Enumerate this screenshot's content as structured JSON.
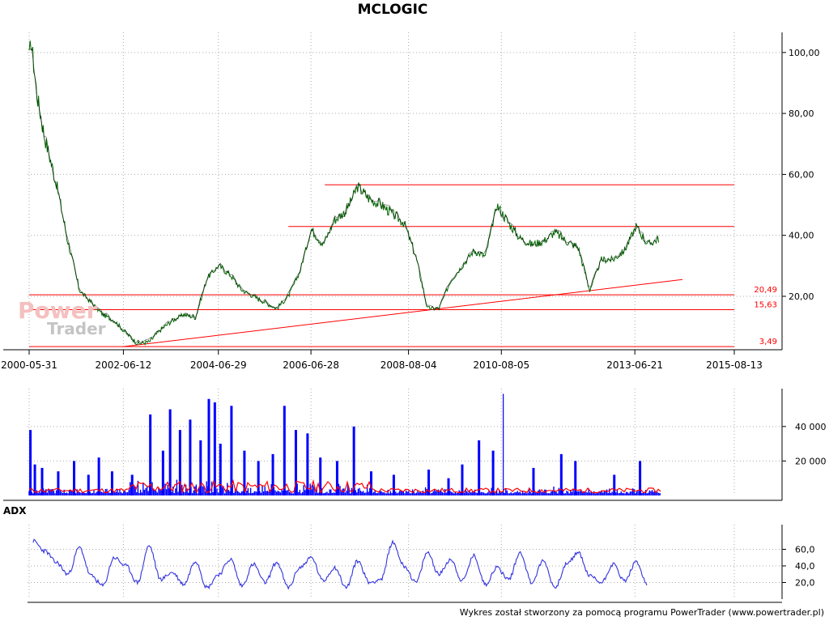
{
  "title": "MCLOGIC",
  "footer": "Wykres został stworzony za pomocą programu PowerTrader (www.powertrader.pl)",
  "watermark": {
    "line1": "Power",
    "line2": "Trader"
  },
  "colors": {
    "price": "#006400",
    "level": "#ff0000",
    "volume": "#0000ff",
    "volume_avg": "#ff0000",
    "adx": "#3333dd",
    "grid": "#aaaaaa"
  },
  "chart_data": [
    {
      "type": "line",
      "name": "price",
      "title": "MCLOGIC",
      "x_tick_labels": [
        "2000-05-31",
        "2002-06-12",
        "2004-06-29",
        "2006-06-28",
        "2008-08-04",
        "2010-08-05",
        "2013-06-21",
        "2015-08-13"
      ],
      "y_tick_labels": [
        "20,00",
        "40,00",
        "60,00",
        "80,00",
        "100,00"
      ],
      "ylim": [
        3,
        105
      ],
      "x_range": [
        "2000-05-31",
        "2015-08-13"
      ],
      "grid": true,
      "series": [
        {
          "x": [
            "2000-05-31",
            "2000-06-15",
            "2000-08-01",
            "2000-10-01",
            "2001-01-01",
            "2001-04-01",
            "2001-07-01",
            "2001-10-01",
            "2002-01-01",
            "2002-04-01",
            "2002-07-01",
            "2002-10-01",
            "2003-01-01",
            "2003-04-01",
            "2003-07-01",
            "2003-10-01",
            "2004-01-01",
            "2004-04-01",
            "2004-07-01",
            "2004-10-01",
            "2005-01-01",
            "2005-04-01",
            "2005-07-01",
            "2005-10-01",
            "2006-01-01",
            "2006-04-01",
            "2006-07-01",
            "2006-10-01",
            "2007-01-01",
            "2007-04-01",
            "2007-07-01",
            "2007-10-01",
            "2008-01-01",
            "2008-04-01",
            "2008-07-01",
            "2008-10-01",
            "2009-01-01",
            "2009-04-01",
            "2009-07-01",
            "2009-10-01",
            "2010-01-01",
            "2010-04-01",
            "2010-07-01",
            "2010-10-01",
            "2011-01-01",
            "2011-04-01",
            "2011-07-01",
            "2011-10-01",
            "2012-01-01",
            "2012-04-01",
            "2012-07-01",
            "2012-10-01",
            "2013-01-01",
            "2013-04-01",
            "2013-07-01",
            "2013-10-01",
            "2014-01-01"
          ],
          "values": [
            98,
            104,
            86,
            72,
            57,
            38,
            22,
            18,
            14,
            12,
            8,
            4.5,
            5,
            9,
            12,
            14,
            13,
            26,
            30,
            27,
            22,
            20,
            18,
            16,
            20,
            28,
            42,
            37,
            45,
            48,
            56,
            52,
            50,
            47,
            44,
            33,
            16,
            16,
            25,
            30,
            35,
            33,
            50,
            44,
            39,
            37,
            38,
            41,
            38,
            36,
            22,
            32,
            32,
            35,
            43,
            37,
            39
          ]
        }
      ],
      "levels": [
        {
          "value": 56.6,
          "label": "",
          "from": "2006-10-15",
          "to": "2015-08-13"
        },
        {
          "value": 42.9,
          "label": "",
          "from": "2006-01-01",
          "to": "2015-08-13"
        },
        {
          "value": 20.49,
          "label": "20,49",
          "from": "2000-05-31",
          "to": "2015-08-13"
        },
        {
          "value": 15.63,
          "label": "15,63",
          "from": "2000-05-31",
          "to": "2015-08-13"
        },
        {
          "value": 3.49,
          "label": "3,49",
          "from": "2000-05-31",
          "to": "2015-08-13"
        }
      ],
      "trendline": {
        "from": [
          "2002-06-12",
          3.49
        ],
        "to": [
          "2014-07-01",
          25.5
        ]
      }
    },
    {
      "type": "bar",
      "name": "volume",
      "y_tick_labels": [
        "20 000",
        "40 000"
      ],
      "ylim": [
        0,
        62000
      ],
      "grid": true,
      "x_range": [
        "2000-05-31",
        "2015-08-13"
      ],
      "spikes": [
        {
          "x": "2000-06-10",
          "value": 38000
        },
        {
          "x": "2000-07-15",
          "value": 18000
        },
        {
          "x": "2000-09-10",
          "value": 16000
        },
        {
          "x": "2001-01-15",
          "value": 14000
        },
        {
          "x": "2001-05-20",
          "value": 20000
        },
        {
          "x": "2001-09-10",
          "value": 12000
        },
        {
          "x": "2001-12-01",
          "value": 22000
        },
        {
          "x": "2002-03-15",
          "value": 14000
        },
        {
          "x": "2002-08-20",
          "value": 12000
        },
        {
          "x": "2003-01-10",
          "value": 47000
        },
        {
          "x": "2003-04-20",
          "value": 26000
        },
        {
          "x": "2003-06-15",
          "value": 50000
        },
        {
          "x": "2003-09-01",
          "value": 38000
        },
        {
          "x": "2003-11-20",
          "value": 44000
        },
        {
          "x": "2004-02-10",
          "value": 32000
        },
        {
          "x": "2004-04-15",
          "value": 56000
        },
        {
          "x": "2004-06-01",
          "value": 54000
        },
        {
          "x": "2004-07-15",
          "value": 30000
        },
        {
          "x": "2004-10-10",
          "value": 52000
        },
        {
          "x": "2005-01-20",
          "value": 26000
        },
        {
          "x": "2005-05-10",
          "value": 20000
        },
        {
          "x": "2005-09-01",
          "value": 24000
        },
        {
          "x": "2005-12-01",
          "value": 52000
        },
        {
          "x": "2006-03-01",
          "value": 38000
        },
        {
          "x": "2006-06-01",
          "value": 36000
        },
        {
          "x": "2006-09-10",
          "value": 22000
        },
        {
          "x": "2007-01-20",
          "value": 20000
        },
        {
          "x": "2007-06-01",
          "value": 40000
        },
        {
          "x": "2007-10-15",
          "value": 14000
        },
        {
          "x": "2008-04-10",
          "value": 12000
        },
        {
          "x": "2009-01-10",
          "value": 15000
        },
        {
          "x": "2009-06-15",
          "value": 10000
        },
        {
          "x": "2009-10-01",
          "value": 18000
        },
        {
          "x": "2010-02-10",
          "value": 32000
        },
        {
          "x": "2010-06-01",
          "value": 26000
        },
        {
          "x": "2010-08-20",
          "value": 59000
        },
        {
          "x": "2011-04-15",
          "value": 16000
        },
        {
          "x": "2011-11-20",
          "value": 24000
        },
        {
          "x": "2012-03-10",
          "value": 20000
        },
        {
          "x": "2013-01-10",
          "value": 12000
        },
        {
          "x": "2013-08-01",
          "value": 20000
        }
      ]
    },
    {
      "type": "line",
      "name": "ADX",
      "y_tick_labels": [
        "20,0",
        "40,0",
        "60,0"
      ],
      "ylim": [
        0,
        80
      ],
      "grid": true,
      "x_range": [
        "2000-05-31",
        "2015-08-13"
      ],
      "series": [
        {
          "name": "ADX",
          "x": [
            "2000-07-01",
            "2000-10-01",
            "2001-01-01",
            "2001-04-01",
            "2001-07-01",
            "2001-10-01",
            "2002-01-01",
            "2002-04-01",
            "2002-07-01",
            "2002-10-01",
            "2003-01-01",
            "2003-04-01",
            "2003-07-01",
            "2003-10-01",
            "2004-01-01",
            "2004-04-01",
            "2004-07-01",
            "2004-10-01",
            "2005-01-01",
            "2005-04-01",
            "2005-07-01",
            "2005-10-01",
            "2006-01-01",
            "2006-04-01",
            "2006-07-01",
            "2006-10-01",
            "2007-01-01",
            "2007-04-01",
            "2007-07-01",
            "2007-10-01",
            "2008-01-01",
            "2008-04-01",
            "2008-07-01",
            "2008-10-01",
            "2009-01-01",
            "2009-04-01",
            "2009-07-01",
            "2009-10-01",
            "2010-01-01",
            "2010-04-01",
            "2010-07-01",
            "2010-10-01",
            "2011-01-01",
            "2011-04-01",
            "2011-07-01",
            "2011-10-01",
            "2012-01-01",
            "2012-04-01",
            "2012-07-01",
            "2012-10-01",
            "2013-01-01",
            "2013-04-01",
            "2013-07-01",
            "2013-10-01"
          ],
          "values": [
            70,
            58,
            44,
            30,
            62,
            28,
            16,
            50,
            40,
            20,
            64,
            24,
            32,
            18,
            46,
            14,
            30,
            48,
            16,
            42,
            20,
            44,
            14,
            38,
            50,
            22,
            38,
            14,
            46,
            20,
            24,
            68,
            40,
            20,
            56,
            30,
            48,
            22,
            52,
            18,
            38,
            24,
            56,
            20,
            46,
            14,
            42,
            56,
            28,
            20,
            42,
            22,
            44,
            18
          ]
        }
      ]
    }
  ]
}
